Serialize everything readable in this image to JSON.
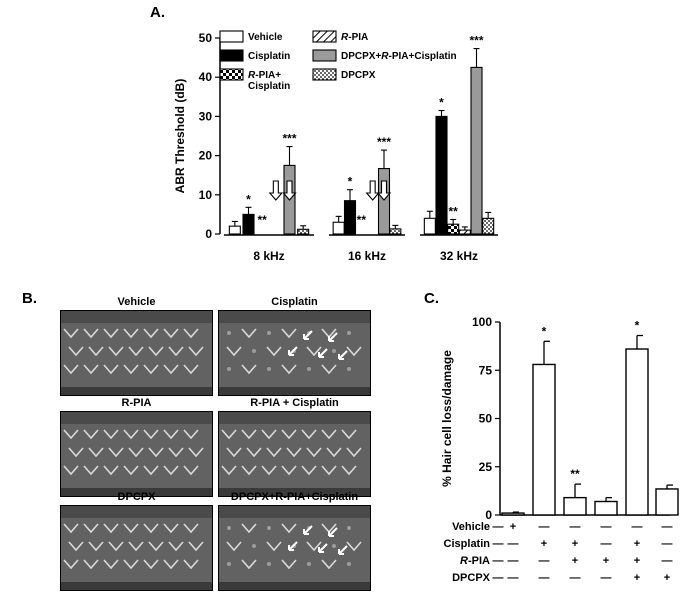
{
  "panels": {
    "a": "A.",
    "b": "B.",
    "c": "C."
  },
  "micrographs": [
    {
      "title": "Vehicle",
      "hair_cell_loss": false
    },
    {
      "title": "Cisplatin",
      "hair_cell_loss": true
    },
    {
      "title": "R-PIA",
      "hair_cell_loss": false
    },
    {
      "title": "R-PIA + Cisplatin",
      "hair_cell_loss": false
    },
    {
      "title": "DPCPX",
      "hair_cell_loss": false
    },
    {
      "title": "DPCPX+R-PIA+Cisplatin",
      "hair_cell_loss": true
    }
  ],
  "chart_data": [
    {
      "type": "bar",
      "panel": "A.",
      "ylabel": "ABR Threshold (dB)",
      "ylim": [
        0,
        50
      ],
      "yticks": [
        "0",
        "10",
        "20",
        "30",
        "40",
        "50"
      ],
      "categories": [
        "8 kHz",
        "16 kHz",
        "32 kHz"
      ],
      "legend": {
        "placement": "top-right",
        "columns": 2
      },
      "series": [
        {
          "name": "Vehicle",
          "pattern": "white",
          "values": [
            2,
            3,
            4
          ],
          "errors": [
            1.2,
            1.5,
            1.8
          ]
        },
        {
          "name": "Cisplatin",
          "pattern": "black",
          "values": [
            5,
            8.5,
            30
          ],
          "errors": [
            1.8,
            2.8,
            1.5
          ]
        },
        {
          "name": "R-PIA+ Cisplatin",
          "pattern": "checker",
          "values": [
            0,
            0,
            2.5
          ],
          "errors": [
            0,
            0,
            1.2
          ]
        },
        {
          "name": "R-PIA",
          "pattern": "hatch",
          "values": [
            0,
            0,
            1
          ],
          "errors": [
            0,
            0,
            0.8
          ]
        },
        {
          "name": "DPCPX+R-PIA+Cisplatin",
          "pattern": "gray",
          "values": [
            17.5,
            16.7,
            42.5
          ],
          "errors": [
            4.8,
            4.7,
            4.8
          ]
        },
        {
          "name": "DPCPX",
          "pattern": "dots",
          "values": [
            1.2,
            1.3,
            4
          ],
          "errors": [
            0.9,
            0.9,
            1.5
          ]
        }
      ],
      "annotations": [
        {
          "text": "*",
          "category": "8 kHz",
          "series": "Cisplatin"
        },
        {
          "text": "**",
          "category": "8 kHz",
          "series": "R-PIA+ Cisplatin"
        },
        {
          "text": "***",
          "category": "8 kHz",
          "series": "DPCPX+R-PIA+Cisplatin"
        },
        {
          "text": "*",
          "category": "16 kHz",
          "series": "Cisplatin"
        },
        {
          "text": "**",
          "category": "16 kHz",
          "series": "R-PIA+ Cisplatin"
        },
        {
          "text": "***",
          "category": "16 kHz",
          "series": "DPCPX+R-PIA+Cisplatin"
        },
        {
          "text": "*",
          "category": "32 kHz",
          "series": "Cisplatin"
        },
        {
          "text": "**",
          "category": "32 kHz",
          "series": "R-PIA+ Cisplatin"
        },
        {
          "text": "***",
          "category": "32 kHz",
          "series": "DPCPX+R-PIA+Cisplatin"
        }
      ],
      "down_arrows": [
        {
          "category": "8 kHz",
          "series": "R-PIA"
        },
        {
          "category": "8 kHz",
          "series": "DPCPX+R-PIA+Cisplatin"
        },
        {
          "category": "16 kHz",
          "series": "R-PIA"
        },
        {
          "category": "16 kHz",
          "series": "DPCPX+R-PIA+Cisplatin"
        }
      ]
    },
    {
      "type": "bar",
      "panel": "C.",
      "ylabel": "% Hair cell loss/damage",
      "ylim": [
        0,
        100
      ],
      "yticks": [
        "0",
        "25",
        "50",
        "75",
        "100"
      ],
      "values": [
        1,
        78,
        9,
        7,
        86,
        13.5
      ],
      "errors": [
        0.5,
        12,
        7,
        2,
        7,
        2
      ],
      "annotations": [
        "",
        "*",
        "**",
        "",
        "*",
        ""
      ],
      "treatments": [
        {
          "name": "Vehicle",
          "signs": [
            "+",
            "—",
            "—",
            "—",
            "—",
            "—"
          ]
        },
        {
          "name": "Cisplatin",
          "signs": [
            "—",
            "+",
            "+",
            "—",
            "+",
            "—"
          ]
        },
        {
          "name": "R-PIA",
          "signs": [
            "—",
            "—",
            "+",
            "+",
            "+",
            "—"
          ]
        },
        {
          "name": "DPCPX",
          "signs": [
            "—",
            "—",
            "—",
            "—",
            "+",
            "+"
          ]
        }
      ]
    }
  ]
}
